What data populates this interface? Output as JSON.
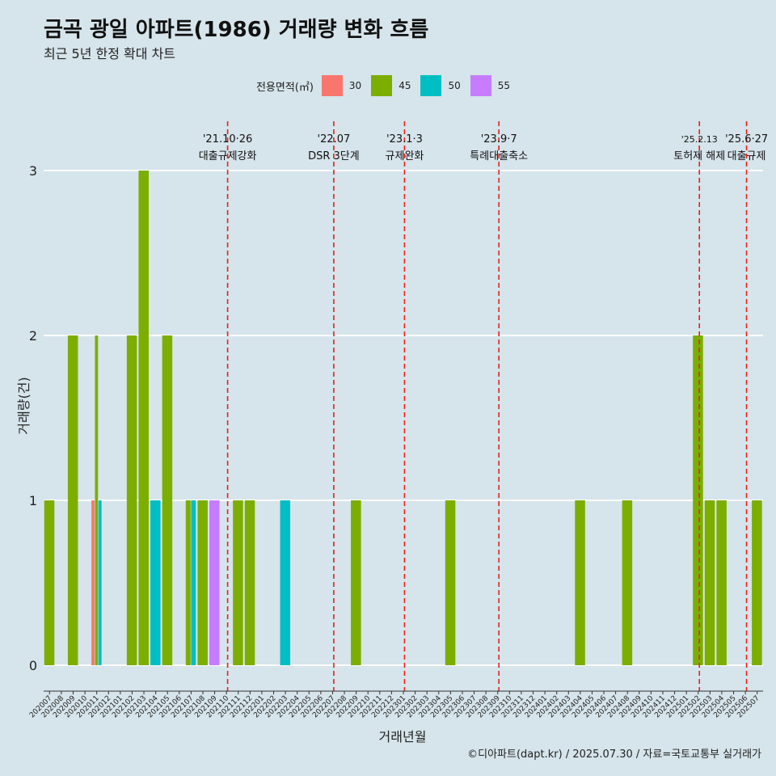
{
  "chart_data": {
    "type": "bar",
    "title": "금곡 광일 아파트(1986) 거래량 변화 흐름",
    "subtitle": "최근 5년 한정 확대 차트",
    "xlabel": "거래년월",
    "ylabel": "거래량(건)",
    "ylim": [
      0,
      3
    ],
    "yticks": [
      "0",
      "1",
      "2",
      "3"
    ],
    "grid": true,
    "legend_title": "전용면적(㎡)",
    "legend_position": "top",
    "caption": "©디아파트(dapt.kr) / 2025.07.30 / 자료=국토교통부 실거래가",
    "categories": [
      "202007",
      "202008",
      "202009",
      "202010",
      "202011",
      "202012",
      "202101",
      "202102",
      "202103",
      "202104",
      "202105",
      "202106",
      "202107",
      "202108",
      "202109",
      "202110",
      "202111",
      "202112",
      "202201",
      "202202",
      "202203",
      "202204",
      "202205",
      "202206",
      "202207",
      "202208",
      "202209",
      "202210",
      "202211",
      "202212",
      "202301",
      "202302",
      "202303",
      "202304",
      "202305",
      "202306",
      "202307",
      "202308",
      "202309",
      "202310",
      "202311",
      "202312",
      "202401",
      "202402",
      "202403",
      "202404",
      "202405",
      "202406",
      "202407",
      "202408",
      "202409",
      "202410",
      "202411",
      "202412",
      "202501",
      "202502",
      "202503",
      "202504",
      "202505",
      "202506",
      "202507"
    ],
    "series": [
      {
        "name": "30",
        "color": "#f8766d",
        "values": [
          0,
          0,
          0,
          0,
          1,
          0,
          0,
          0,
          0,
          0,
          0,
          0,
          0,
          0,
          0,
          0,
          0,
          0,
          0,
          0,
          0,
          0,
          0,
          0,
          0,
          0,
          0,
          0,
          0,
          0,
          0,
          0,
          0,
          0,
          0,
          0,
          0,
          0,
          0,
          0,
          0,
          0,
          0,
          0,
          0,
          0,
          0,
          0,
          0,
          0,
          0,
          0,
          0,
          0,
          0,
          0,
          0,
          0,
          0,
          0,
          0
        ]
      },
      {
        "name": "45",
        "color": "#7cae00",
        "values": [
          1,
          0,
          2,
          0,
          2,
          0,
          0,
          2,
          3,
          0,
          2,
          0,
          1,
          1,
          0,
          0,
          1,
          1,
          0,
          0,
          0,
          0,
          0,
          0,
          0,
          0,
          1,
          0,
          0,
          0,
          0,
          0,
          0,
          0,
          1,
          0,
          0,
          0,
          0,
          0,
          0,
          0,
          0,
          0,
          0,
          1,
          0,
          0,
          0,
          1,
          0,
          0,
          0,
          0,
          0,
          2,
          1,
          1,
          0,
          0,
          1
        ]
      },
      {
        "name": "50",
        "color": "#00bfc4",
        "values": [
          0,
          0,
          0,
          0,
          1,
          0,
          0,
          0,
          0,
          1,
          0,
          0,
          1,
          0,
          0,
          0,
          0,
          0,
          0,
          0,
          1,
          0,
          0,
          0,
          0,
          0,
          0,
          0,
          0,
          0,
          0,
          0,
          0,
          0,
          0,
          0,
          0,
          0,
          0,
          0,
          0,
          0,
          0,
          0,
          0,
          0,
          0,
          0,
          0,
          0,
          0,
          0,
          0,
          0,
          0,
          0,
          0,
          0,
          0,
          0,
          0
        ]
      },
      {
        "name": "55",
        "color": "#c77cff",
        "values": [
          0,
          0,
          0,
          0,
          0,
          0,
          0,
          0,
          0,
          0,
          0,
          0,
          0,
          0,
          1,
          0,
          0,
          0,
          0,
          0,
          0,
          0,
          0,
          0,
          0,
          0,
          0,
          0,
          0,
          0,
          0,
          0,
          0,
          0,
          0,
          0,
          0,
          0,
          0,
          0,
          0,
          0,
          0,
          0,
          0,
          0,
          0,
          0,
          0,
          0,
          0,
          0,
          0,
          0,
          0,
          0,
          0,
          0,
          0,
          0,
          0
        ]
      }
    ],
    "events": [
      {
        "date": "202110.5",
        "line1": "'21.10·26",
        "line2": "대출규제강화"
      },
      {
        "date": "202207.5",
        "line1": "'22.07",
        "line2": "DSR 3단계"
      },
      {
        "date": "202301.5",
        "line1": "'23.1·3",
        "line2": "규제완화"
      },
      {
        "date": "202309.5",
        "line1": "'23.9·7",
        "line2": "특례대출축소"
      },
      {
        "date": "202502.5",
        "line1": "'25.2.13",
        "line2": "토허제 해제"
      },
      {
        "date": "202506.5",
        "line1": "'25.6·27",
        "line2": "대출규제"
      }
    ]
  }
}
